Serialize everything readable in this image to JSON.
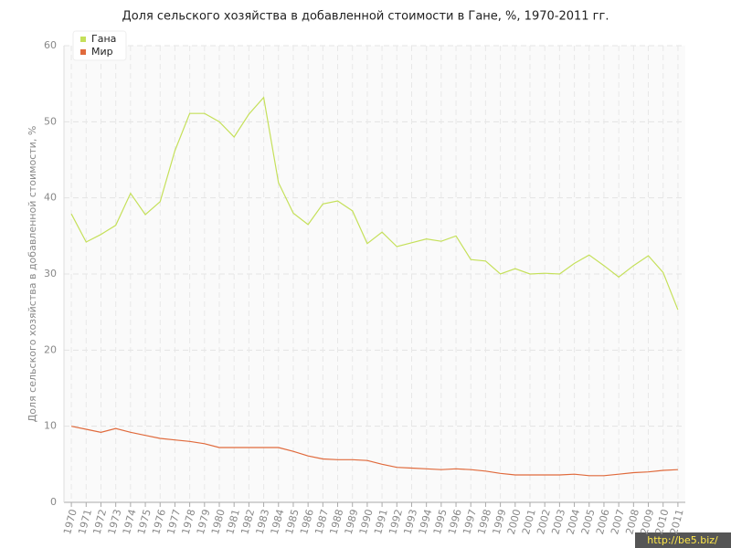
{
  "chart_data": {
    "type": "line",
    "title": "Доля сельского хозяйства в добавленной стоимости в Гане, %, 1970-2011 гг.",
    "y_label": "Доля сельского хозяйства в добавленной стоимости, %",
    "x": [
      1970,
      1971,
      1972,
      1973,
      1974,
      1975,
      1976,
      1977,
      1978,
      1979,
      1980,
      1981,
      1982,
      1983,
      1984,
      1985,
      1986,
      1987,
      1988,
      1989,
      1990,
      1991,
      1992,
      1993,
      1994,
      1995,
      1996,
      1997,
      1998,
      1999,
      2000,
      2001,
      2002,
      2003,
      2004,
      2005,
      2006,
      2007,
      2008,
      2009,
      2010,
      2011
    ],
    "series": [
      {
        "name": "Гана",
        "color": "#c5e05a",
        "values": [
          37.9,
          34.2,
          35.2,
          36.4,
          40.6,
          37.8,
          39.5,
          46.2,
          51.1,
          51.1,
          50.0,
          48.0,
          51.0,
          53.2,
          42.0,
          38.0,
          36.5,
          39.2,
          39.6,
          38.3,
          34.0,
          35.5,
          33.6,
          34.1,
          34.6,
          34.3,
          35.0,
          31.9,
          31.7,
          30.0,
          30.7,
          30.0,
          30.1,
          30.0,
          31.4,
          32.5,
          31.1,
          29.6,
          31.1,
          32.4,
          30.2,
          25.3
        ]
      },
      {
        "name": "Мир",
        "color": "#e06a3c",
        "values": [
          10.0,
          9.6,
          9.2,
          9.7,
          9.2,
          8.8,
          8.4,
          8.2,
          8.0,
          7.7,
          7.2,
          7.2,
          7.2,
          7.2,
          7.2,
          6.7,
          6.1,
          5.7,
          5.6,
          5.6,
          5.5,
          5.0,
          4.6,
          4.5,
          4.4,
          4.3,
          4.4,
          4.3,
          4.1,
          3.8,
          3.6,
          3.6,
          3.6,
          3.6,
          3.7,
          3.5,
          3.5,
          3.7,
          3.9,
          4.0,
          4.2,
          4.3
        ]
      }
    ],
    "xlim": [
      1969.5,
      2011.5
    ],
    "xticks": [
      1970,
      1971,
      1972,
      1973,
      1974,
      1975,
      1976,
      1977,
      1978,
      1979,
      1980,
      1981,
      1982,
      1983,
      1984,
      1985,
      1986,
      1987,
      1988,
      1989,
      1990,
      1991,
      1992,
      1993,
      1994,
      1995,
      1996,
      1997,
      1998,
      1999,
      2000,
      2001,
      2002,
      2003,
      2004,
      2005,
      2006,
      2007,
      2008,
      2009,
      2010,
      2011
    ],
    "ylim": [
      0,
      60
    ],
    "yticks": [
      0,
      10,
      20,
      30,
      40,
      50,
      60
    ],
    "grid": true,
    "legend": "top-left"
  },
  "watermark": "http://be5.biz/"
}
